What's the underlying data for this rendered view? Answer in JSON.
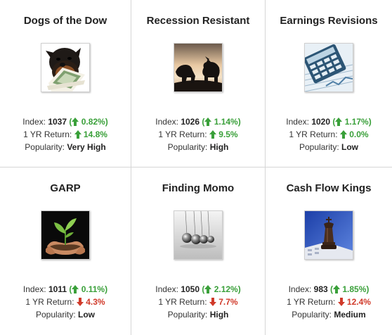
{
  "labels": {
    "index": "Index:",
    "one_yr": "1 YR Return:",
    "popularity": "Popularity:"
  },
  "colors": {
    "up": "#3aa03a",
    "down": "#d03a2a",
    "divider": "#d6d6d6"
  },
  "cards": [
    {
      "title": "Dogs of the Dow",
      "image": "rottweiler-with-cash-icon",
      "index": "1037",
      "index_change": "0.82%",
      "index_dir": "up",
      "one_yr_return": "14.8%",
      "return_dir": "up",
      "popularity": "Very High"
    },
    {
      "title": "Recession Resistant",
      "image": "bull-and-bear-silhouette-icon",
      "index": "1026",
      "index_change": "1.14%",
      "index_dir": "up",
      "one_yr_return": "9.5%",
      "return_dir": "up",
      "popularity": "High"
    },
    {
      "title": "Earnings Revisions",
      "image": "calculator-and-chart-icon",
      "index": "1020",
      "index_change": "1.17%",
      "index_dir": "up",
      "one_yr_return": "0.0%",
      "return_dir": "up",
      "popularity": "Low"
    },
    {
      "title": "GARP",
      "image": "hands-holding-seedling-icon",
      "index": "1011",
      "index_change": "0.11%",
      "index_dir": "up",
      "one_yr_return": "4.3%",
      "return_dir": "down",
      "popularity": "Low"
    },
    {
      "title": "Finding Momo",
      "image": "newtons-cradle-icon",
      "index": "1050",
      "index_change": "2.12%",
      "index_dir": "up",
      "one_yr_return": "7.7%",
      "return_dir": "down",
      "popularity": "High"
    },
    {
      "title": "Cash Flow Kings",
      "image": "chess-king-icon",
      "index": "983",
      "index_change": "1.85%",
      "index_dir": "up",
      "one_yr_return": "12.4%",
      "return_dir": "down",
      "popularity": "Medium"
    }
  ]
}
